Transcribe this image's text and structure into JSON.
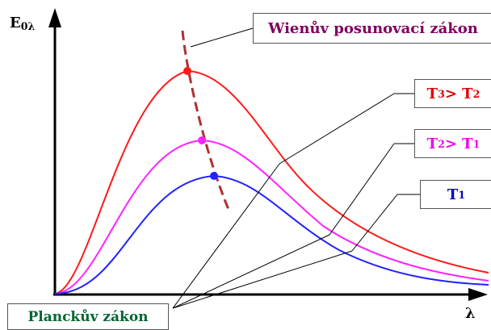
{
  "axes": {
    "y_label": "E",
    "y_label_sub": "0λ",
    "x_label": "λ"
  },
  "labels": {
    "wien": "Wienův posunovací zákon",
    "planck": "Planckův zákon",
    "t3_main": "T",
    "t3_sub1": "3",
    "t3_op": " > T",
    "t3_sub2": "2",
    "t2_main": "T",
    "t2_sub1": "2",
    "t2_op": " > T",
    "t2_sub2": "1",
    "t1_main": "T",
    "t1_sub1": "1"
  },
  "colors": {
    "t3": "#ff1a1a",
    "t2": "#ff22ff",
    "t1": "#2222ff",
    "wien_line": "#b03030",
    "wien_text": "#800060",
    "planck_text": "#006633",
    "t3_text": "#e00000",
    "t2_text": "#ee00ee",
    "t1_text": "#0000cc",
    "axis": "#000000",
    "leader": "#000000"
  },
  "curves": [
    {
      "name": "T3",
      "peak_x": 232,
      "peak_y": 88,
      "color_key": "t3"
    },
    {
      "name": "T2",
      "peak_x": 250,
      "peak_y": 174,
      "color_key": "t2"
    },
    {
      "name": "T1",
      "peak_x": 265,
      "peak_y": 218,
      "color_key": "t1"
    }
  ]
}
